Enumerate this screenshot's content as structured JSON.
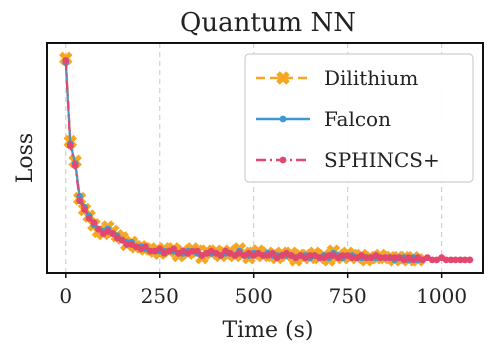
{
  "chart_data": {
    "type": "line",
    "title": "Quantum NN",
    "xlabel": "Time (s)",
    "ylabel": "Loss",
    "xlim": [
      -50,
      1110
    ],
    "ylim": [
      0.0,
      1.05
    ],
    "x_ticks": [
      0,
      250,
      500,
      750,
      1000
    ],
    "x_tick_labels": [
      "0",
      "250",
      "500",
      "750",
      "1000"
    ],
    "grid": "vertical dashed",
    "legend_position": "top-right",
    "series": [
      {
        "name": "Dilithium",
        "color": "#f5a623",
        "linestyle": "dashed",
        "marker": "x-thick",
        "x": [
          0,
          12,
          25,
          37,
          50,
          62,
          75,
          87,
          100,
          112,
          125,
          137,
          150,
          162,
          175,
          187,
          200,
          212,
          225,
          237,
          250,
          262,
          275,
          287,
          300,
          312,
          325,
          337,
          350,
          362,
          375,
          387,
          400,
          412,
          425,
          437,
          450,
          462,
          475,
          487,
          500,
          512,
          525,
          537,
          550,
          562,
          575,
          587,
          600,
          612,
          625,
          637,
          650,
          662,
          675,
          687,
          700,
          712,
          725,
          737,
          750,
          762,
          775,
          787,
          800,
          812,
          825,
          837,
          850,
          862,
          875,
          887,
          900,
          912,
          925,
          937
        ],
        "y": [
          0.98,
          0.6,
          0.51,
          0.34,
          0.29,
          0.26,
          0.22,
          0.19,
          0.18,
          0.21,
          0.19,
          0.17,
          0.16,
          0.13,
          0.14,
          0.12,
          0.12,
          0.11,
          0.11,
          0.1,
          0.09,
          0.11,
          0.1,
          0.11,
          0.08,
          0.1,
          0.09,
          0.11,
          0.1,
          0.07,
          0.1,
          0.09,
          0.1,
          0.08,
          0.09,
          0.1,
          0.08,
          0.11,
          0.09,
          0.07,
          0.09,
          0.1,
          0.08,
          0.09,
          0.08,
          0.07,
          0.09,
          0.08,
          0.09,
          0.06,
          0.08,
          0.08,
          0.07,
          0.09,
          0.07,
          0.08,
          0.06,
          0.1,
          0.08,
          0.07,
          0.09,
          0.08,
          0.07,
          0.08,
          0.06,
          0.07,
          0.07,
          0.08,
          0.07,
          0.07,
          0.06,
          0.07,
          0.07,
          0.06,
          0.07,
          0.06
        ]
      },
      {
        "name": "Falcon",
        "color": "#3b9ad6",
        "linestyle": "solid",
        "marker": "dot",
        "x": [
          0,
          12,
          25,
          37,
          50,
          62,
          75,
          87,
          100,
          112,
          125,
          137,
          150,
          162,
          175,
          187,
          200,
          212,
          225,
          237,
          250,
          262,
          275,
          287,
          300,
          312,
          325,
          337,
          350,
          362,
          375,
          387,
          400,
          412,
          425,
          437,
          450,
          462,
          475,
          487,
          500,
          512,
          525,
          537,
          550,
          562,
          575,
          587,
          600,
          612,
          625,
          637,
          650,
          662,
          675,
          687,
          700,
          712,
          725,
          737,
          750,
          762,
          775,
          787,
          800,
          812,
          825,
          837,
          850,
          862,
          875,
          887,
          900,
          912,
          925,
          937
        ],
        "y": [
          0.96,
          0.59,
          0.5,
          0.35,
          0.3,
          0.26,
          0.22,
          0.2,
          0.19,
          0.2,
          0.18,
          0.17,
          0.15,
          0.14,
          0.14,
          0.12,
          0.12,
          0.11,
          0.1,
          0.1,
          0.1,
          0.1,
          0.1,
          0.1,
          0.09,
          0.09,
          0.1,
          0.1,
          0.09,
          0.08,
          0.09,
          0.09,
          0.09,
          0.08,
          0.09,
          0.09,
          0.08,
          0.1,
          0.08,
          0.08,
          0.09,
          0.09,
          0.08,
          0.09,
          0.08,
          0.08,
          0.08,
          0.08,
          0.08,
          0.07,
          0.08,
          0.08,
          0.07,
          0.08,
          0.07,
          0.08,
          0.07,
          0.09,
          0.08,
          0.07,
          0.08,
          0.08,
          0.07,
          0.07,
          0.07,
          0.07,
          0.07,
          0.07,
          0.07,
          0.07,
          0.06,
          0.07,
          0.07,
          0.06,
          0.07,
          0.06
        ]
      },
      {
        "name": "SPHINCS+",
        "color": "#e2476f",
        "linestyle": "dashdot",
        "marker": "dot",
        "x": [
          0,
          12,
          25,
          37,
          50,
          62,
          75,
          87,
          100,
          112,
          125,
          137,
          150,
          162,
          175,
          187,
          200,
          212,
          225,
          237,
          250,
          262,
          275,
          287,
          300,
          312,
          325,
          337,
          350,
          362,
          375,
          387,
          400,
          412,
          425,
          437,
          450,
          462,
          475,
          487,
          500,
          512,
          525,
          537,
          550,
          562,
          575,
          587,
          600,
          612,
          625,
          637,
          650,
          662,
          675,
          687,
          700,
          712,
          725,
          737,
          750,
          762,
          775,
          787,
          800,
          812,
          825,
          837,
          850,
          862,
          875,
          887,
          900,
          912,
          925,
          937,
          950,
          962,
          975,
          987,
          1000,
          1012,
          1025,
          1037,
          1050,
          1062,
          1075
        ],
        "y": [
          0.97,
          0.58,
          0.49,
          0.33,
          0.29,
          0.25,
          0.23,
          0.2,
          0.18,
          0.19,
          0.18,
          0.16,
          0.15,
          0.13,
          0.13,
          0.12,
          0.11,
          0.12,
          0.1,
          0.1,
          0.11,
          0.09,
          0.1,
          0.11,
          0.09,
          0.1,
          0.09,
          0.1,
          0.1,
          0.08,
          0.09,
          0.1,
          0.09,
          0.08,
          0.1,
          0.09,
          0.08,
          0.09,
          0.08,
          0.09,
          0.08,
          0.09,
          0.08,
          0.08,
          0.09,
          0.07,
          0.08,
          0.09,
          0.08,
          0.07,
          0.08,
          0.07,
          0.08,
          0.08,
          0.07,
          0.07,
          0.08,
          0.08,
          0.07,
          0.08,
          0.08,
          0.07,
          0.07,
          0.08,
          0.07,
          0.07,
          0.08,
          0.07,
          0.07,
          0.07,
          0.07,
          0.07,
          0.06,
          0.07,
          0.06,
          0.07,
          0.06,
          0.07,
          0.06,
          0.06,
          0.07,
          0.06,
          0.06,
          0.06,
          0.06,
          0.06,
          0.06
        ]
      }
    ]
  }
}
